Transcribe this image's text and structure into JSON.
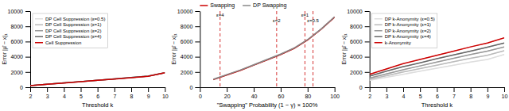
{
  "chart_data": [
    {
      "type": "line",
      "xlabel": "Threshold k",
      "ylabel": "Error |μ̂ − x|₁",
      "x": [
        2,
        3,
        4,
        5,
        6,
        7,
        8,
        9,
        10
      ],
      "xlim": [
        2,
        10
      ],
      "ylim": [
        0,
        10000
      ],
      "xticks": [
        2,
        3,
        4,
        5,
        6,
        7,
        8,
        9,
        10
      ],
      "yticks": [
        0,
        2000,
        4000,
        6000,
        8000,
        10000
      ],
      "grid": false,
      "legend": "upper left",
      "series": [
        {
          "name": "DP Cell Suppression (ε=0.5)",
          "color": "#dddddd",
          "values": [
            205,
            385,
            560,
            735,
            910,
            1085,
            1265,
            1445,
            1905
          ],
          "band": 30
        },
        {
          "name": "DP Cell Suppression (ε=1)",
          "color": "#bbbbbb",
          "values": [
            208,
            388,
            563,
            738,
            913,
            1088,
            1268,
            1448,
            1908
          ],
          "band": 30
        },
        {
          "name": "DP Cell Suppression (ε=2)",
          "color": "#999999",
          "values": [
            210,
            390,
            565,
            740,
            915,
            1090,
            1270,
            1450,
            1910
          ],
          "band": 30
        },
        {
          "name": "DP Cell Suppression (ε=4)",
          "color": "#666666",
          "values": [
            212,
            392,
            567,
            742,
            917,
            1092,
            1272,
            1452,
            1912
          ],
          "band": 30
        },
        {
          "name": "Cell Suppression",
          "color": "#cc0000",
          "values": [
            200,
            380,
            555,
            730,
            905,
            1080,
            1260,
            1440,
            1900
          ],
          "band": 18
        }
      ]
    },
    {
      "type": "line",
      "xlabel": "\"Swapping\" Probability (1 − γ) × 100%",
      "ylabel": "Error |μ̂ − x|₁",
      "x": [
        10,
        20,
        30,
        40,
        50,
        60,
        70,
        80,
        90,
        100
      ],
      "xlim": [
        0,
        100
      ],
      "ylim": [
        0,
        10000
      ],
      "xticks": [
        0,
        20,
        40,
        60,
        80,
        100
      ],
      "yticks": [
        0,
        2000,
        4000,
        6000,
        8000,
        10000
      ],
      "grid": false,
      "legend": "top",
      "series": [
        {
          "name": "Swapping",
          "color": "#cc0000",
          "values": [
            1000,
            1600,
            2200,
            2900,
            3600,
            4300,
            5100,
            6200,
            7600,
            9200
          ],
          "band": 80
        },
        {
          "name": "DP Swapping",
          "color": "#888888",
          "values": [
            1050,
            1650,
            2250,
            2950,
            3650,
            4350,
            5150,
            6250,
            7650,
            9250
          ],
          "band": 100
        }
      ],
      "annotations": [
        {
          "x": 15,
          "text": "ε=4",
          "color": "#cc0000",
          "line_style": "dashed"
        },
        {
          "x": 57,
          "text": "ε=2",
          "color": "#cc0000",
          "line_style": "dashed"
        },
        {
          "x": 78,
          "text": "ε=1",
          "color": "#cc0000",
          "line_style": "dashed"
        },
        {
          "x": 84,
          "text": "ε=0.5",
          "color": "#cc0000",
          "line_style": "dashed"
        }
      ]
    },
    {
      "type": "line",
      "xlabel": "Threshold k",
      "ylabel": "Error |μ̂ − x|₁",
      "x": [
        2,
        3,
        4,
        5,
        6,
        7,
        8,
        9,
        10
      ],
      "xlim": [
        2,
        10
      ],
      "ylim": [
        0,
        10000
      ],
      "xticks": [
        2,
        3,
        4,
        5,
        6,
        7,
        8,
        9,
        10
      ],
      "yticks": [
        0,
        2000,
        4000,
        6000,
        8000,
        10000
      ],
      "grid": false,
      "legend": "upper left",
      "series": [
        {
          "name": "DP k-Anonymity (ε=0.5)",
          "color": "#dddddd",
          "values": [
            900,
            1300,
            1700,
            2100,
            2500,
            2900,
            3300,
            3650,
            4300
          ],
          "band": 60
        },
        {
          "name": "DP k-Anonymity (ε=1)",
          "color": "#bbbbbb",
          "values": [
            1050,
            1500,
            2000,
            2450,
            2900,
            3350,
            3800,
            4200,
            4800
          ],
          "band": 60
        },
        {
          "name": "DP k-Anonymity (ε=2)",
          "color": "#999999",
          "values": [
            1200,
            1750,
            2300,
            2800,
            3300,
            3800,
            4300,
            4750,
            5300
          ],
          "band": 60
        },
        {
          "name": "DP k-Anonymity (ε=4)",
          "color": "#666666",
          "values": [
            1450,
            2100,
            2700,
            3200,
            3750,
            4250,
            4750,
            5250,
            5800
          ],
          "band": 60
        },
        {
          "name": "k-Anonymity",
          "color": "#cc0000",
          "values": [
            1700,
            2400,
            3100,
            3650,
            4200,
            4750,
            5300,
            5800,
            6500
          ],
          "band": 36
        }
      ]
    }
  ]
}
